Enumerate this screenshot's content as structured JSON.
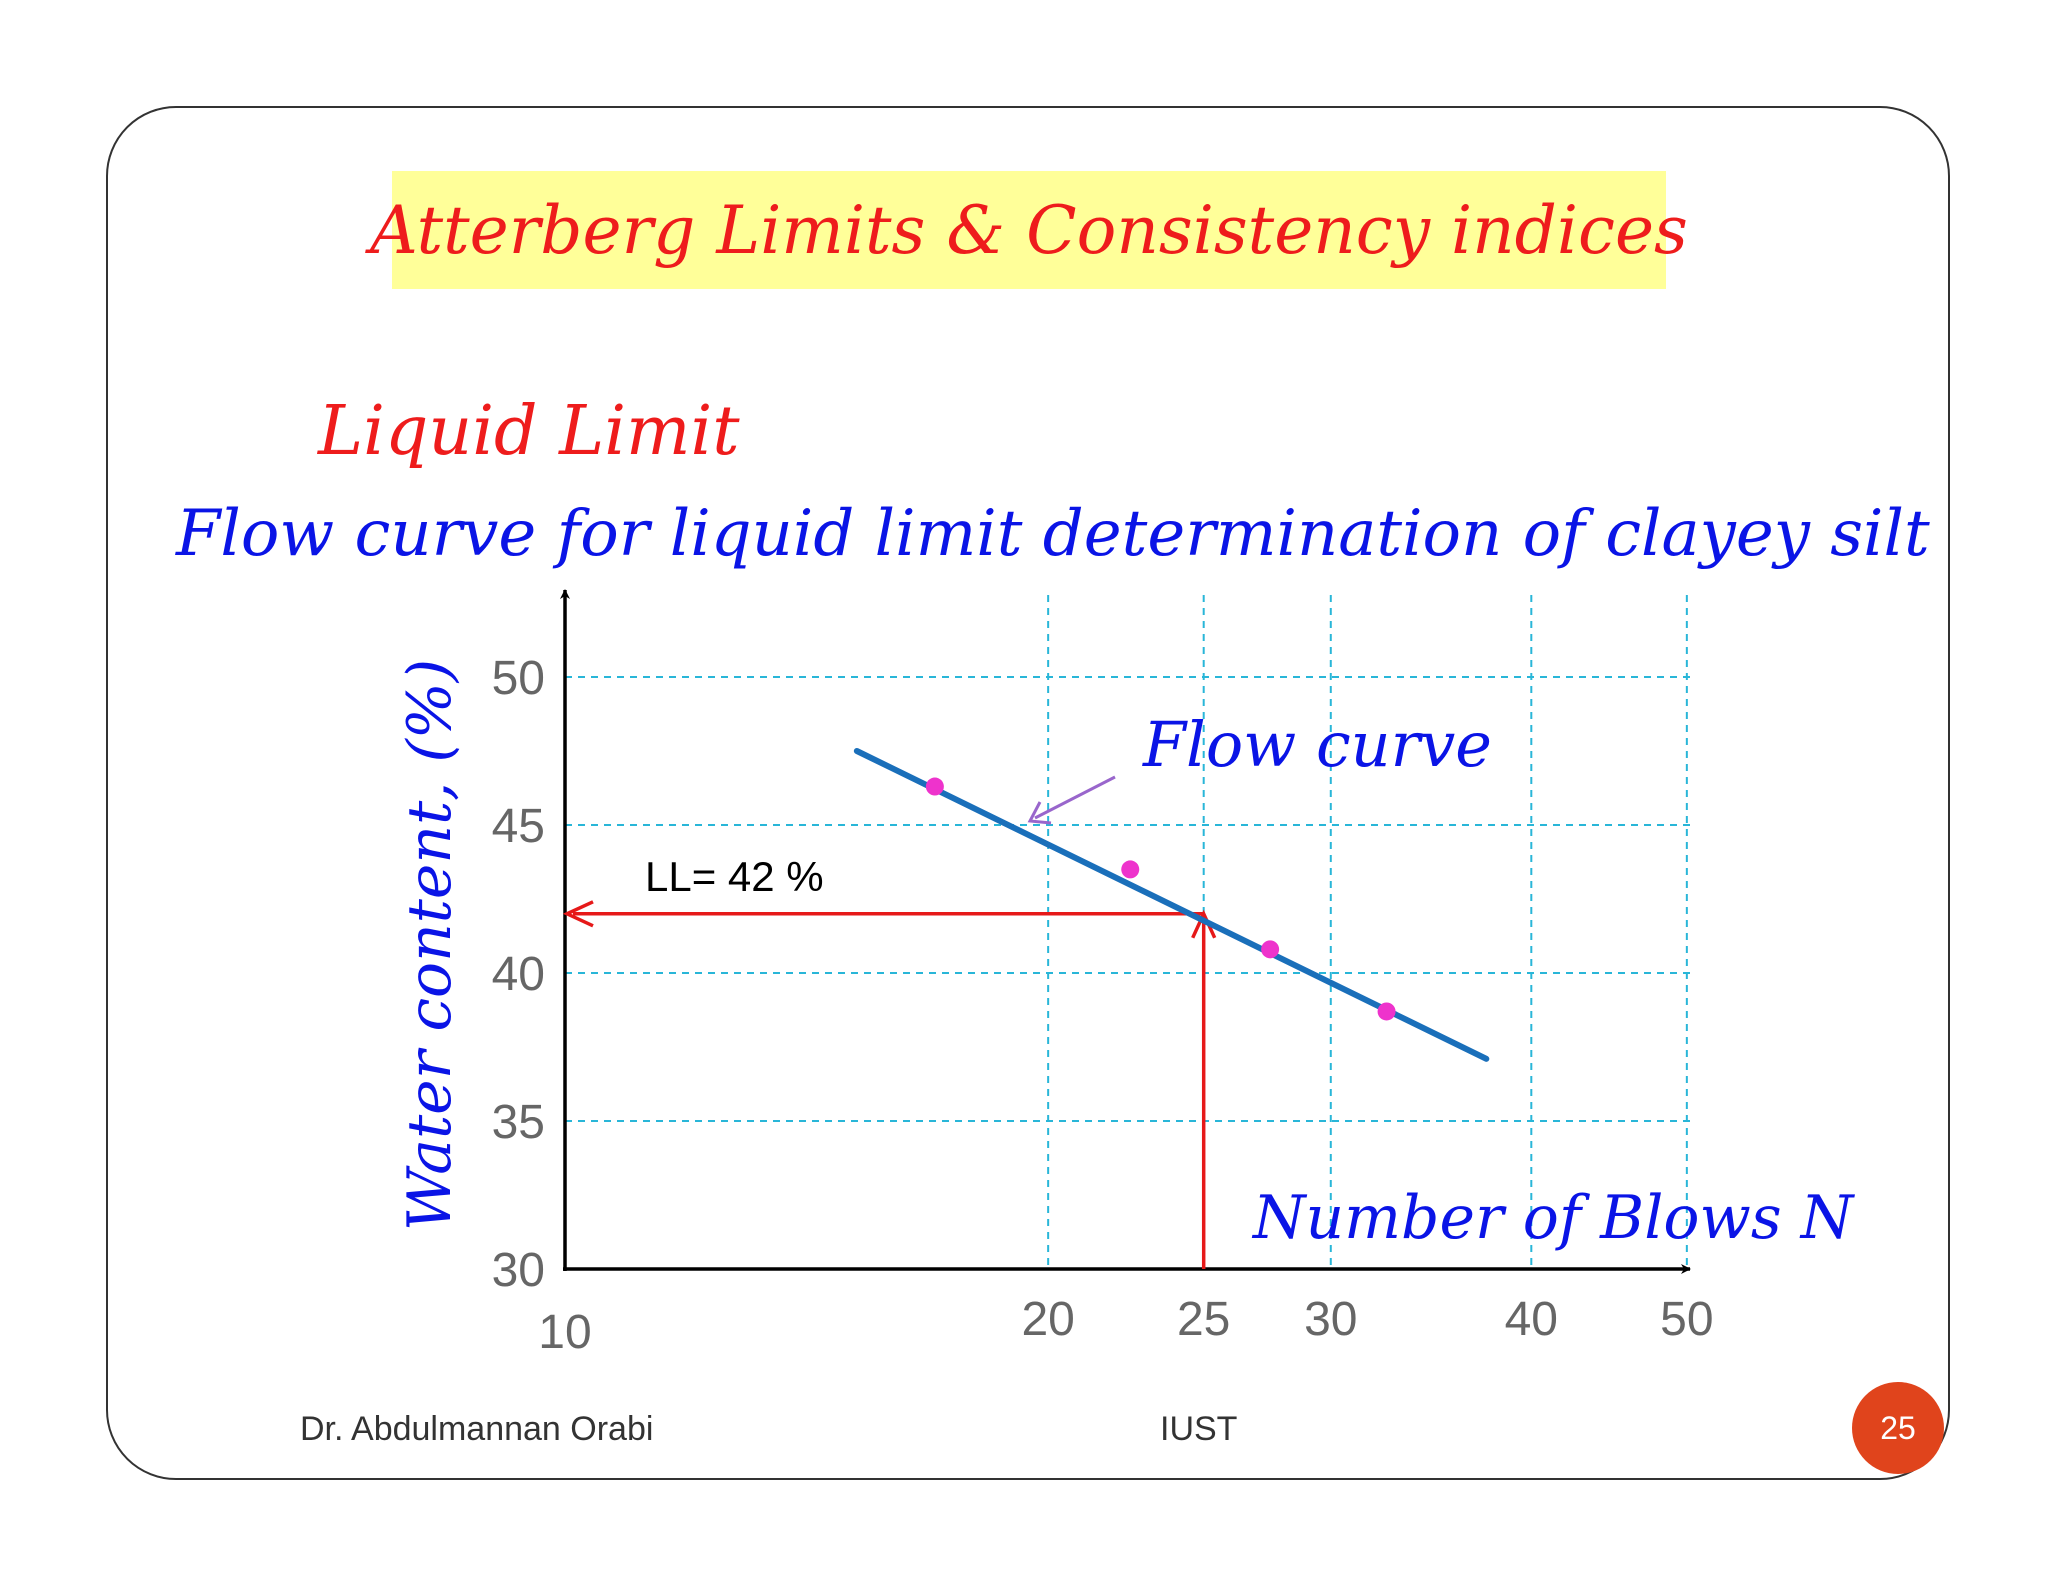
{
  "slide": {
    "title": "Atterberg Limits & Consistency indices",
    "heading": "Liquid Limit",
    "subtitle": "Flow curve for liquid limit determination of  clayey silt",
    "footer_author": "Dr. Abdulmannan Orabi",
    "footer_org": "IUST",
    "page_number": "25"
  },
  "colors": {
    "title_text": "#ee1c1c",
    "title_background": "#ffff99",
    "blue_text": "#0a14e6",
    "flow_line": "#1a6fba",
    "points": "#ee33cc",
    "ll_arrows": "#e61919",
    "grid": "#29b6d8",
    "pointer_arrow": "#9966cc",
    "page_badge": "#e0441c"
  },
  "chart_data": {
    "type": "scatter",
    "title": "Flow curve for liquid limit determination of  clayey silt",
    "xlabel": "Number of  Blows N",
    "ylabel": "Water content, (%)",
    "x_scale": "log",
    "xlim": [
      10,
      50
    ],
    "ylim": [
      30,
      50
    ],
    "x_ticks": [
      10,
      20,
      25,
      30,
      40,
      50
    ],
    "x_tick_labels": [
      "10",
      "20",
      "25",
      "30",
      "40",
      "50"
    ],
    "y_ticks": [
      30,
      35,
      40,
      45,
      50
    ],
    "y_tick_labels": [
      "30",
      "35",
      "40",
      "45",
      "50"
    ],
    "grid": true,
    "series": [
      {
        "points": [
          {
            "x": 17,
            "y": 46.3
          },
          {
            "x": 22.5,
            "y": 43.5
          },
          {
            "x": 27.5,
            "y": 40.8
          },
          {
            "x": 32.5,
            "y": 38.7
          }
        ]
      }
    ],
    "fit_line": {
      "x": [
        15.2,
        37.5
      ],
      "y": [
        47.5,
        37.1
      ]
    },
    "liquid_limit": {
      "blows": 25,
      "water_content": 42
    },
    "annotations": [
      {
        "text": "LL= 42 %"
      },
      {
        "text": "Flow curve"
      }
    ]
  }
}
